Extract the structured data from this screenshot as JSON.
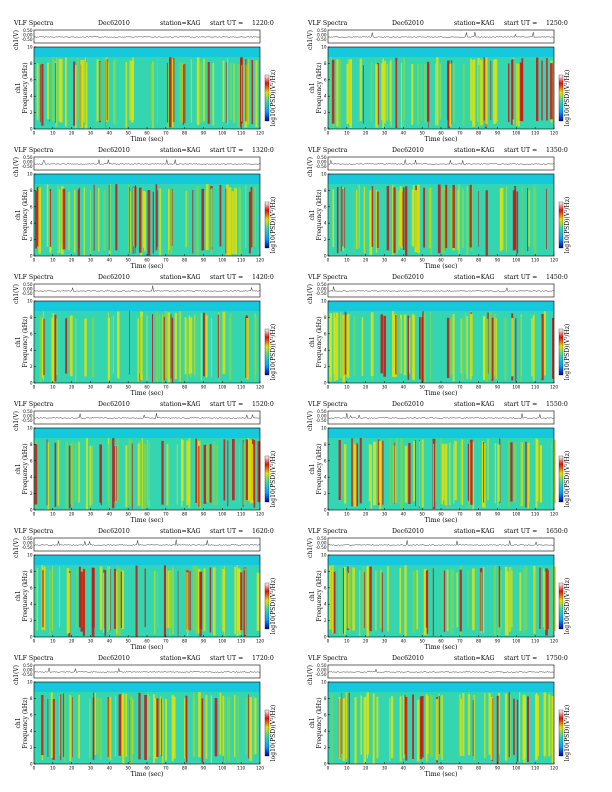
{
  "panel_template": {
    "title": "VLF Spectra",
    "date": "Dec62010",
    "station": "station=KAG",
    "start_prefix": "start  UT  =",
    "waveform_ylabel": "ch1(V)",
    "channel_label": "ch1",
    "spec_ylabel": "Frequency  (kHz)",
    "xlabel": "Time  (sec)",
    "colorbar_label": "log10(PSD)(V²/Hz)"
  },
  "colors": {
    "spectrogram_background": "#33d6b0",
    "band_top": "#16c8dc",
    "high": "#e8e000",
    "peak": "#d01010",
    "axis": "#000000"
  },
  "chart_data": [
    {
      "type": "heatmap",
      "title": "VLF Spectra",
      "start_ut": "1220:0",
      "x_ticks": [
        0,
        10,
        20,
        30,
        40,
        50,
        60,
        70,
        80,
        90,
        100,
        110,
        120
      ],
      "spec_y_ticks": [
        0,
        2,
        4,
        6,
        8,
        10
      ],
      "wave_y_ticks": [
        "0.50",
        "0.00",
        "-0.50"
      ],
      "xlim": [
        0,
        120
      ],
      "ylim": [
        0,
        10
      ]
    },
    {
      "type": "heatmap",
      "title": "VLF Spectra",
      "start_ut": "1250:0",
      "x_ticks": [
        0,
        10,
        20,
        30,
        40,
        50,
        60,
        70,
        80,
        90,
        100,
        110,
        120
      ],
      "spec_y_ticks": [
        0,
        2,
        4,
        6,
        8,
        10
      ],
      "wave_y_ticks": [
        "0.50",
        "0.00",
        "-0.50"
      ],
      "xlim": [
        0,
        120
      ],
      "ylim": [
        0,
        10
      ]
    },
    {
      "type": "heatmap",
      "title": "VLF Spectra",
      "start_ut": "1320:0",
      "x_ticks": [
        0,
        10,
        20,
        30,
        40,
        50,
        60,
        70,
        80,
        90,
        100,
        110,
        120
      ],
      "spec_y_ticks": [
        0,
        2,
        4,
        6,
        8,
        10
      ],
      "wave_y_ticks": [
        "0.50",
        "0.00",
        "-0.50"
      ],
      "xlim": [
        0,
        120
      ],
      "ylim": [
        0,
        10
      ]
    },
    {
      "type": "heatmap",
      "title": "VLF Spectra",
      "start_ut": "1350:0",
      "x_ticks": [
        0,
        10,
        20,
        30,
        40,
        50,
        60,
        70,
        80,
        90,
        100,
        110,
        120
      ],
      "spec_y_ticks": [
        0,
        2,
        4,
        6,
        8,
        10
      ],
      "wave_y_ticks": [
        "0.50",
        "0.00",
        "-0.50"
      ],
      "xlim": [
        0,
        120
      ],
      "ylim": [
        0,
        10
      ]
    },
    {
      "type": "heatmap",
      "title": "VLF Spectra",
      "start_ut": "1420:0",
      "x_ticks": [
        0,
        10,
        20,
        30,
        40,
        50,
        60,
        70,
        80,
        90,
        100,
        110,
        120
      ],
      "spec_y_ticks": [
        0,
        2,
        4,
        6,
        8,
        10
      ],
      "wave_y_ticks": [
        "0.50",
        "0.00",
        "-0.50"
      ],
      "xlim": [
        0,
        120
      ],
      "ylim": [
        0,
        10
      ]
    },
    {
      "type": "heatmap",
      "title": "VLF Spectra",
      "start_ut": "1450:0",
      "x_ticks": [
        0,
        10,
        20,
        30,
        40,
        50,
        60,
        70,
        80,
        90,
        100,
        110,
        120
      ],
      "spec_y_ticks": [
        0,
        2,
        4,
        6,
        8,
        10
      ],
      "wave_y_ticks": [
        "0.50",
        "0.00",
        "-0.50"
      ],
      "xlim": [
        0,
        120
      ],
      "ylim": [
        0,
        10
      ]
    },
    {
      "type": "heatmap",
      "title": "VLF Spectra",
      "start_ut": "1520:0",
      "x_ticks": [
        0,
        10,
        20,
        30,
        40,
        50,
        60,
        70,
        80,
        90,
        100,
        110,
        120
      ],
      "spec_y_ticks": [
        0,
        2,
        4,
        6,
        8,
        10
      ],
      "wave_y_ticks": [
        "0.50",
        "0.00",
        "-0.50"
      ],
      "xlim": [
        0,
        120
      ],
      "ylim": [
        0,
        10
      ]
    },
    {
      "type": "heatmap",
      "title": "VLF Spectra",
      "start_ut": "1550:0",
      "x_ticks": [
        0,
        10,
        20,
        30,
        40,
        50,
        60,
        70,
        80,
        90,
        100,
        110,
        120
      ],
      "spec_y_ticks": [
        0,
        2,
        4,
        6,
        8,
        10
      ],
      "wave_y_ticks": [
        "0.50",
        "0.00",
        "-0.50"
      ],
      "xlim": [
        0,
        120
      ],
      "ylim": [
        0,
        10
      ]
    },
    {
      "type": "heatmap",
      "title": "VLF Spectra",
      "start_ut": "1620:0",
      "x_ticks": [
        0,
        10,
        20,
        30,
        40,
        50,
        60,
        70,
        80,
        90,
        100,
        110,
        120
      ],
      "spec_y_ticks": [
        0,
        2,
        4,
        6,
        8,
        10
      ],
      "wave_y_ticks": [
        "0.50",
        "0.00",
        "-0.50"
      ],
      "xlim": [
        0,
        120
      ],
      "ylim": [
        0,
        10
      ]
    },
    {
      "type": "heatmap",
      "title": "VLF Spectra",
      "start_ut": "1650:0",
      "x_ticks": [
        0,
        10,
        20,
        30,
        40,
        50,
        60,
        70,
        80,
        90,
        100,
        110,
        120
      ],
      "spec_y_ticks": [
        0,
        2,
        4,
        6,
        8,
        10
      ],
      "wave_y_ticks": [
        "0.50",
        "0.00",
        "-0.50"
      ],
      "xlim": [
        0,
        120
      ],
      "ylim": [
        0,
        10
      ]
    },
    {
      "type": "heatmap",
      "title": "VLF Spectra",
      "start_ut": "1720:0",
      "x_ticks": [
        0,
        10,
        20,
        30,
        40,
        50,
        60,
        70,
        80,
        90,
        100,
        110,
        120
      ],
      "spec_y_ticks": [
        0,
        2,
        4,
        6,
        8,
        10
      ],
      "wave_y_ticks": [
        "0.50",
        "0.00",
        "-0.50"
      ],
      "xlim": [
        0,
        120
      ],
      "ylim": [
        0,
        10
      ]
    },
    {
      "type": "heatmap",
      "title": "VLF Spectra",
      "start_ut": "1750:0",
      "x_ticks": [
        0,
        10,
        20,
        30,
        40,
        50,
        60,
        70,
        80,
        90,
        100,
        110,
        120
      ],
      "spec_y_ticks": [
        0,
        2,
        4,
        6,
        8,
        10
      ],
      "wave_y_ticks": [
        "0.50",
        "0.00",
        "-0.50"
      ],
      "xlim": [
        0,
        120
      ],
      "ylim": [
        0,
        10
      ]
    }
  ]
}
